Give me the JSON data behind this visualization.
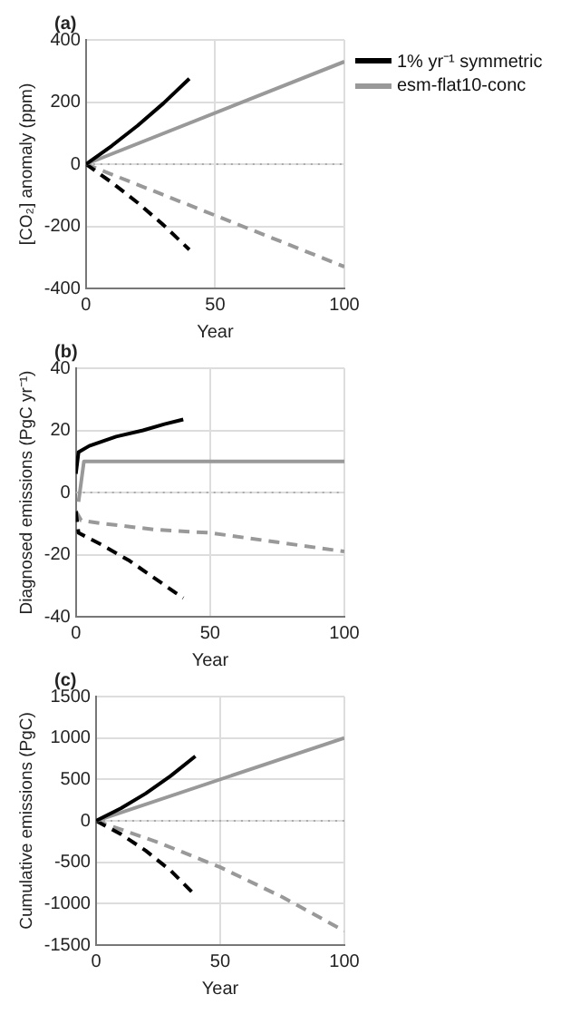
{
  "chart_data": [
    {
      "type": "line",
      "title": "(a)",
      "xlabel": "Year",
      "ylabel": "[CO₂] anomaly (ppm)",
      "xlim": [
        0,
        100
      ],
      "xticks": [
        0,
        50,
        100
      ],
      "ylim": [
        -400,
        400
      ],
      "yticks": [
        -400,
        -200,
        0,
        200,
        400
      ],
      "grid": true,
      "legend": "top right",
      "marker": "none",
      "ref_lines": [
        {
          "axis": "y",
          "value": 0,
          "color": "#aaaaaa",
          "line_style": "dotted"
        }
      ],
      "series": [
        {
          "name": "1% yr⁻¹ symmetric",
          "color": "#000000",
          "line_style": "solid",
          "x": [
            0,
            10,
            20,
            30,
            40
          ],
          "values": [
            0,
            59,
            124,
            196,
            275
          ]
        },
        {
          "name": "esm-flat10-conc",
          "color": "#999999",
          "line_style": "solid",
          "x": [
            0,
            100
          ],
          "values": [
            0,
            330
          ]
        },
        {
          "color": "#000000",
          "line_style": "dashed",
          "x": [
            0,
            10,
            20,
            30,
            40
          ],
          "values": [
            0,
            -59,
            -124,
            -196,
            -275
          ]
        },
        {
          "color": "#999999",
          "line_style": "dashed",
          "x": [
            0,
            100
          ],
          "values": [
            0,
            -330
          ]
        }
      ]
    },
    {
      "type": "line",
      "title": "(b)",
      "xlabel": "Year",
      "ylabel": "Diagnosed emissions (PgC yr⁻¹)",
      "xlim": [
        0,
        100
      ],
      "xticks": [
        0,
        50,
        100
      ],
      "ylim": [
        -40,
        40
      ],
      "yticks": [
        -40,
        -20,
        0,
        20,
        40
      ],
      "grid": true,
      "marker": "none",
      "ref_lines": [
        {
          "axis": "y",
          "value": 0,
          "color": "#aaaaaa",
          "line_style": "dotted"
        }
      ],
      "series": [
        {
          "color": "#000000",
          "line_style": "solid",
          "x": [
            0,
            1,
            5,
            15,
            25,
            33,
            40
          ],
          "values": [
            6,
            13,
            15,
            18,
            20,
            22,
            23.5
          ]
        },
        {
          "color": "#999999",
          "line_style": "solid",
          "x": [
            1,
            3,
            100
          ],
          "values": [
            -3,
            10,
            10
          ]
        },
        {
          "color": "#000000",
          "line_style": "dashed",
          "x": [
            0,
            1,
            10,
            20,
            30,
            40
          ],
          "values": [
            -6,
            -13,
            -17,
            -22,
            -28,
            -34
          ]
        },
        {
          "color": "#999999",
          "line_style": "dashed",
          "x": [
            0,
            2,
            10,
            30,
            50,
            75,
            100
          ],
          "values": [
            -6,
            -9,
            -10,
            -12,
            -13,
            -16,
            -19
          ]
        }
      ]
    },
    {
      "type": "line",
      "title": "(c)",
      "xlabel": "Year",
      "ylabel": "Cumulative emissions (PgC)",
      "xlim": [
        0,
        100
      ],
      "xticks": [
        0,
        50,
        100
      ],
      "ylim": [
        -1500,
        1500
      ],
      "yticks": [
        -1500,
        -1000,
        -500,
        0,
        500,
        1000,
        1500
      ],
      "grid": true,
      "marker": "none",
      "ref_lines": [
        {
          "axis": "y",
          "value": 0,
          "color": "#aaaaaa",
          "line_style": "dotted"
        }
      ],
      "series": [
        {
          "color": "#000000",
          "line_style": "solid",
          "x": [
            0,
            10,
            20,
            30,
            40
          ],
          "values": [
            0,
            150,
            330,
            540,
            780
          ]
        },
        {
          "color": "#999999",
          "line_style": "solid",
          "x": [
            0,
            100
          ],
          "values": [
            0,
            1000
          ]
        },
        {
          "color": "#000000",
          "line_style": "dashed",
          "x": [
            0,
            10,
            20,
            30,
            40
          ],
          "values": [
            0,
            -160,
            -360,
            -600,
            -900
          ]
        },
        {
          "color": "#999999",
          "line_style": "dashed",
          "x": [
            0,
            25,
            50,
            75,
            100
          ],
          "values": [
            0,
            -260,
            -560,
            -920,
            -1330
          ]
        }
      ]
    }
  ]
}
